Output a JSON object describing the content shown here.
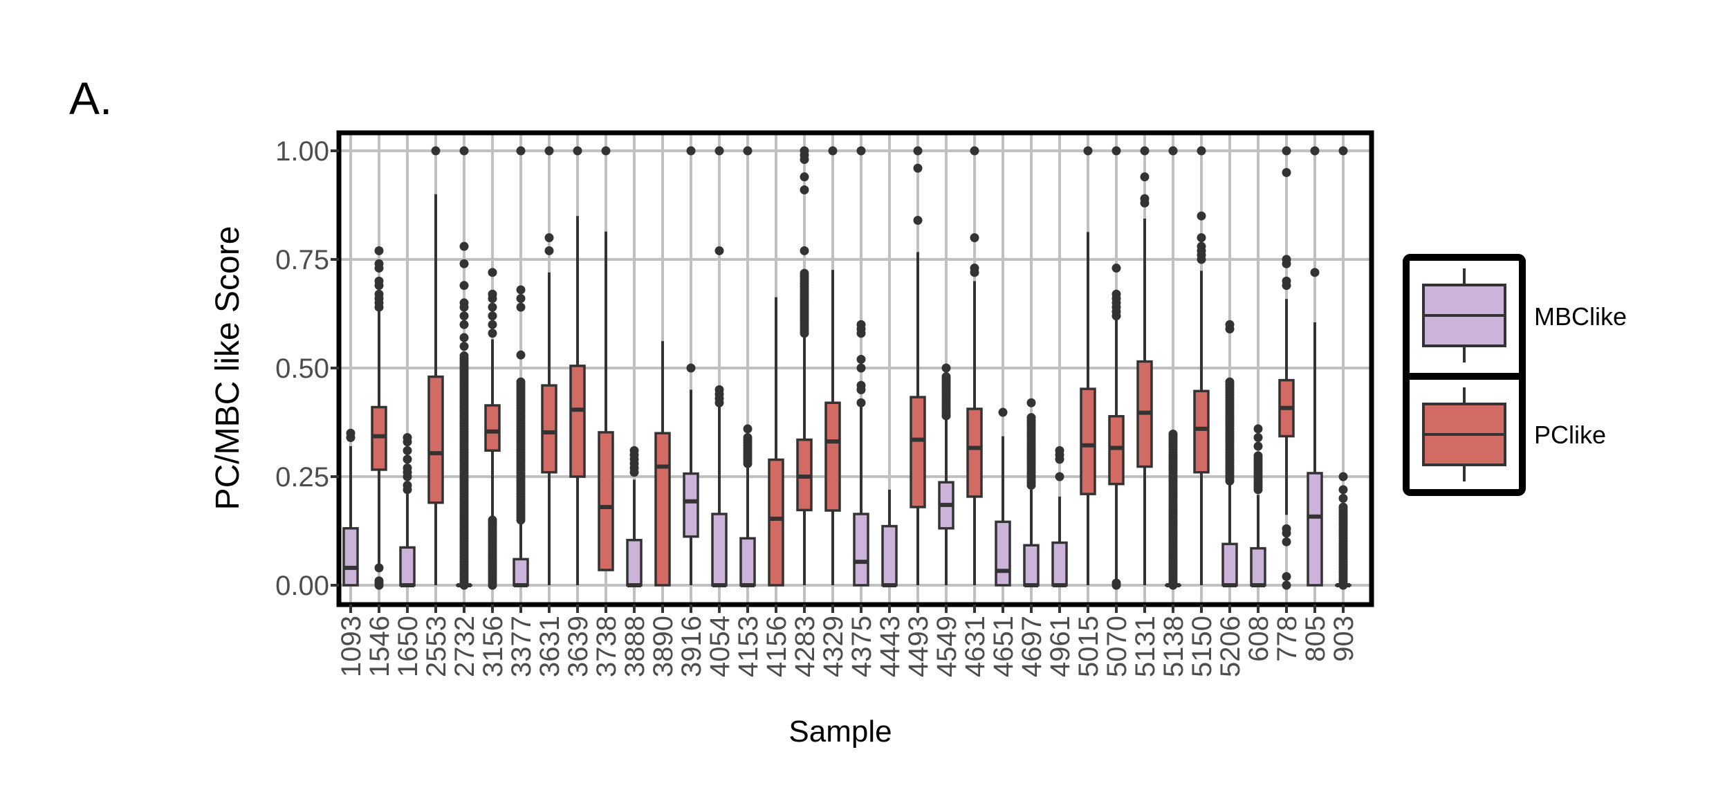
{
  "panel_label": "A.",
  "chart_data": {
    "type": "boxplot",
    "xlabel": "Sample",
    "ylabel": "PC/MBC like Score",
    "ylim": [
      -0.04,
      1.05
    ],
    "yticks": [
      "0.00",
      "0.25",
      "0.50",
      "0.75",
      "1.00"
    ],
    "ytick_values": [
      0,
      0.25,
      0.5,
      0.75,
      1.0
    ],
    "grid": true,
    "legend": {
      "placement": "right",
      "entries": [
        {
          "name": "MBClike",
          "color": "#CBB3D9"
        },
        {
          "name": "PClike",
          "color": "#D16B63"
        }
      ]
    },
    "samples": [
      {
        "name": "1093",
        "group": "MBClike",
        "lo": 0,
        "q1": 0,
        "med": 0.04,
        "q3": 0.131,
        "hi": 0.32,
        "out": [
          0.34,
          0.35
        ]
      },
      {
        "name": "1546",
        "group": "PClike",
        "lo": 0.05,
        "q1": 0.266,
        "med": 0.343,
        "q3": 0.41,
        "hi": 0.63,
        "out": [
          0,
          0.005,
          0.01,
          0.04,
          0.64,
          0.65,
          0.66,
          0.67,
          0.69,
          0.7,
          0.73,
          0.74,
          0.77
        ]
      },
      {
        "name": "1650",
        "group": "MBClike",
        "lo": 0,
        "q1": 0,
        "med": 0,
        "q3": 0.087,
        "hi": 0.21,
        "out": [
          0.22,
          0.23,
          0.25,
          0.26,
          0.27,
          0.29,
          0.31,
          0.33,
          0.34
        ]
      },
      {
        "name": "2553",
        "group": "PClike",
        "lo": 0,
        "q1": 0.19,
        "med": 0.304,
        "q3": 0.48,
        "hi": 0.9,
        "out": [
          1.0
        ]
      },
      {
        "name": "2732",
        "group": "MBClike",
        "lo": 0,
        "q1": 0,
        "med": 0,
        "q3": 0,
        "hi": 0,
        "band": [
          0,
          0.53
        ],
        "out": [
          0.55,
          0.57,
          0.6,
          0.62,
          0.64,
          0.65,
          0.69,
          0.74,
          0.78,
          1.0
        ]
      },
      {
        "name": "3156",
        "group": "PClike",
        "lo": 0.16,
        "q1": 0.31,
        "med": 0.354,
        "q3": 0.414,
        "hi": 0.566,
        "band": [
          0,
          0.15
        ],
        "out": [
          0.58,
          0.6,
          0.62,
          0.64,
          0.66,
          0.67,
          0.72
        ]
      },
      {
        "name": "3377",
        "group": "MBClike",
        "lo": 0,
        "q1": 0,
        "med": 0,
        "q3": 0.06,
        "hi": 0.143,
        "band": [
          0.15,
          0.47
        ],
        "out": [
          0.53,
          0.64,
          0.66,
          0.68,
          1.0
        ]
      },
      {
        "name": "3631",
        "group": "PClike",
        "lo": 0,
        "q1": 0.26,
        "med": 0.352,
        "q3": 0.46,
        "hi": 0.72,
        "out": [
          0.77,
          0.8,
          1.0
        ]
      },
      {
        "name": "3639",
        "group": "PClike",
        "lo": 0,
        "q1": 0.25,
        "med": 0.404,
        "q3": 0.505,
        "hi": 0.85,
        "out": [
          1.0
        ]
      },
      {
        "name": "3738",
        "group": "PClike",
        "lo": 0.035,
        "q1": 0.035,
        "med": 0.18,
        "q3": 0.352,
        "hi": 0.814,
        "out": [
          1.0
        ]
      },
      {
        "name": "3888",
        "group": "MBClike",
        "lo": 0,
        "q1": 0,
        "med": 0,
        "q3": 0.104,
        "hi": 0.243,
        "out": [
          0.26,
          0.27,
          0.28,
          0.29,
          0.3,
          0.31
        ]
      },
      {
        "name": "3890",
        "group": "PClike",
        "lo": 0,
        "q1": 0,
        "med": 0.273,
        "q3": 0.35,
        "hi": 0.562,
        "out": []
      },
      {
        "name": "3916",
        "group": "MBClike",
        "lo": 0,
        "q1": 0.112,
        "med": 0.193,
        "q3": 0.257,
        "hi": 0.45,
        "out": [
          0.5,
          1.0
        ]
      },
      {
        "name": "4054",
        "group": "MBClike",
        "lo": 0,
        "q1": 0,
        "med": 0,
        "q3": 0.164,
        "hi": 0.41,
        "out": [
          0.42,
          0.43,
          0.44,
          0.45,
          0.77,
          1.0
        ]
      },
      {
        "name": "4153",
        "group": "MBClike",
        "lo": 0,
        "q1": 0,
        "med": 0,
        "q3": 0.108,
        "hi": 0.277,
        "band": [
          0.28,
          0.34
        ],
        "out": [
          0.36,
          1.0
        ]
      },
      {
        "name": "4156",
        "group": "PClike",
        "lo": 0,
        "q1": 0,
        "med": 0.153,
        "q3": 0.289,
        "hi": 0.663,
        "out": []
      },
      {
        "name": "4283",
        "group": "PClike",
        "lo": 0,
        "q1": 0.173,
        "med": 0.25,
        "q3": 0.335,
        "hi": 0.574,
        "band": [
          0.58,
          0.72
        ],
        "out": [
          0.77,
          0.91,
          0.94,
          0.98,
          0.99,
          1.0
        ]
      },
      {
        "name": "4329",
        "group": "PClike",
        "lo": 0,
        "q1": 0.172,
        "med": 0.331,
        "q3": 0.42,
        "hi": 0.726,
        "out": [
          1.0
        ]
      },
      {
        "name": "4375",
        "group": "MBClike",
        "lo": 0,
        "q1": 0,
        "med": 0.054,
        "q3": 0.164,
        "hi": 0.41,
        "out": [
          0.42,
          0.45,
          0.46,
          0.5,
          0.52,
          0.58,
          0.59,
          0.6,
          1.0
        ]
      },
      {
        "name": "4443",
        "group": "MBClike",
        "lo": 0,
        "q1": 0,
        "med": 0,
        "q3": 0.136,
        "hi": 0.22,
        "out": []
      },
      {
        "name": "4493",
        "group": "PClike",
        "lo": 0,
        "q1": 0.18,
        "med": 0.335,
        "q3": 0.433,
        "hi": 0.767,
        "out": [
          0.84,
          0.96,
          1.0
        ]
      },
      {
        "name": "4549",
        "group": "MBClike",
        "lo": 0,
        "q1": 0.131,
        "med": 0.185,
        "q3": 0.237,
        "hi": 0.381,
        "band": [
          0.39,
          0.48
        ],
        "out": [
          0.5
        ]
      },
      {
        "name": "4631",
        "group": "PClike",
        "lo": 0,
        "q1": 0.204,
        "med": 0.316,
        "q3": 0.406,
        "hi": 0.7,
        "out": [
          0.72,
          0.73,
          0.8,
          1.0
        ]
      },
      {
        "name": "4651",
        "group": "MBClike",
        "lo": 0,
        "q1": 0,
        "med": 0.033,
        "q3": 0.146,
        "hi": 0.343,
        "out": [
          0.398
        ]
      },
      {
        "name": "4697",
        "group": "MBClike",
        "lo": 0,
        "q1": 0,
        "med": 0,
        "q3": 0.092,
        "hi": 0.22,
        "band": [
          0.23,
          0.39
        ],
        "out": [
          0.42
        ]
      },
      {
        "name": "4961",
        "group": "MBClike",
        "lo": 0,
        "q1": 0,
        "med": 0,
        "q3": 0.098,
        "hi": 0.204,
        "out": [
          0.25,
          0.29,
          0.3,
          0.31
        ]
      },
      {
        "name": "5015",
        "group": "PClike",
        "lo": 0,
        "q1": 0.21,
        "med": 0.322,
        "q3": 0.452,
        "hi": 0.813,
        "out": [
          1.0
        ]
      },
      {
        "name": "5070",
        "group": "PClike",
        "lo": 0.01,
        "q1": 0.233,
        "med": 0.316,
        "q3": 0.389,
        "hi": 0.612,
        "out": [
          0,
          0.005,
          0.62,
          0.63,
          0.64,
          0.65,
          0.66,
          0.67,
          0.73,
          1.0
        ]
      },
      {
        "name": "5131",
        "group": "PClike",
        "lo": 0,
        "q1": 0.273,
        "med": 0.397,
        "q3": 0.515,
        "hi": 0.844,
        "out": [
          0.88,
          0.89,
          0.94,
          1.0
        ]
      },
      {
        "name": "5138",
        "group": "MBClike",
        "lo": 0,
        "q1": 0,
        "med": 0,
        "q3": 0,
        "hi": 0,
        "band": [
          0,
          0.35
        ],
        "out": [
          1.0
        ]
      },
      {
        "name": "5150",
        "group": "PClike",
        "lo": 0,
        "q1": 0.26,
        "med": 0.36,
        "q3": 0.447,
        "hi": 0.724,
        "out": [
          0.75,
          0.76,
          0.77,
          0.78,
          0.8,
          0.85,
          1.0
        ]
      },
      {
        "name": "5206",
        "group": "MBClike",
        "lo": 0,
        "q1": 0,
        "med": 0,
        "q3": 0.095,
        "hi": 0.231,
        "band": [
          0.24,
          0.47
        ],
        "out": [
          0.59,
          0.6
        ]
      },
      {
        "name": "608",
        "group": "MBClike",
        "lo": 0,
        "q1": 0,
        "med": 0,
        "q3": 0.085,
        "hi": 0.208,
        "band": [
          0.22,
          0.3
        ],
        "out": [
          0.32,
          0.34,
          0.36
        ]
      },
      {
        "name": "778",
        "group": "PClike",
        "lo": 0.162,
        "q1": 0.343,
        "med": 0.408,
        "q3": 0.472,
        "hi": 0.659,
        "out": [
          0,
          0.02,
          0.1,
          0.12,
          0.13,
          0.69,
          0.7,
          0.74,
          0.75,
          0.95,
          1.0
        ]
      },
      {
        "name": "805",
        "group": "MBClike",
        "lo": 0,
        "q1": 0,
        "med": 0.158,
        "q3": 0.258,
        "hi": 0.605,
        "out": [
          0.72,
          1.0
        ]
      },
      {
        "name": "903",
        "group": "MBClike",
        "lo": 0,
        "q1": 0,
        "med": 0,
        "q3": 0,
        "hi": 0,
        "band": [
          0,
          0.18
        ],
        "out": [
          0.2,
          0.22,
          0.25,
          1.0
        ]
      }
    ]
  }
}
